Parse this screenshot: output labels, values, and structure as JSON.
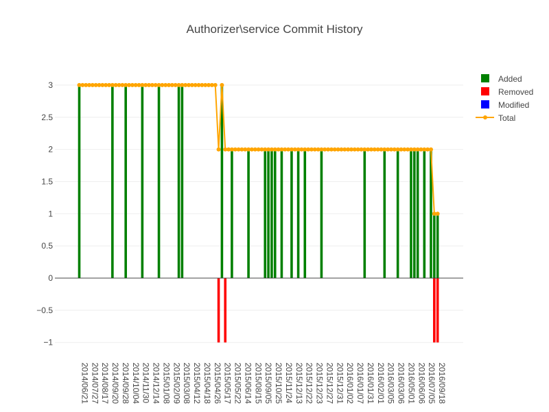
{
  "chart_data": {
    "type": "bar",
    "title": "Authorizer\\service Commit History",
    "xlabel": "",
    "ylabel": "",
    "ylim": [
      -1.1,
      3.3
    ],
    "y_ticks": [
      3,
      2.5,
      2,
      1.5,
      1,
      0.5,
      0,
      -0.5,
      -1
    ],
    "y_tick_labels": [
      "3",
      "2.5",
      "2",
      "1.5",
      "1",
      "0.5",
      "0",
      "−0.5",
      "−1"
    ],
    "grid": true,
    "legend_position": "top-right",
    "x_tick_labels": [
      "2014/06/21",
      "2014/07/27",
      "2014/08/17",
      "2014/09/20",
      "2014/09/28",
      "2014/10/04",
      "2014/11/30",
      "2014/12/14",
      "2015/01/08",
      "2015/02/09",
      "2015/03/08",
      "2015/04/12",
      "2015/04/18",
      "2015/04/26",
      "2015/05/17",
      "2015/05/22",
      "2015/06/14",
      "2015/08/15",
      "2015/09/05",
      "2015/10/25",
      "2015/11/24",
      "2015/12/13",
      "2015/12/22",
      "2015/12/23",
      "2015/12/27",
      "2015/12/31",
      "2016/01/02",
      "2016/01/07",
      "2016/01/31",
      "2016/02/01",
      "2016/03/05",
      "2016/03/06",
      "2016/05/01",
      "2016/06/06",
      "2016/07/05",
      "2016/09/18"
    ],
    "colors": {
      "added": "#008000",
      "removed": "#ff0000",
      "modified": "#0000ff",
      "total": "#ffa500"
    },
    "series": [
      {
        "name": "Added",
        "kind": "bar",
        "color": "#008000",
        "points": [
          [
            0,
            3
          ],
          [
            10,
            3
          ],
          [
            14,
            3
          ],
          [
            19,
            3
          ],
          [
            24,
            3
          ],
          [
            30,
            3
          ],
          [
            31,
            3
          ],
          [
            43,
            3
          ],
          [
            46,
            2
          ],
          [
            51,
            2
          ],
          [
            56,
            2
          ],
          [
            57,
            2
          ],
          [
            58,
            2
          ],
          [
            59,
            2
          ],
          [
            61,
            2
          ],
          [
            64,
            2
          ],
          [
            66,
            2
          ],
          [
            68,
            2
          ],
          [
            73,
            2
          ],
          [
            86,
            2
          ],
          [
            92,
            2
          ],
          [
            96,
            2
          ],
          [
            100,
            2
          ],
          [
            101,
            2
          ],
          [
            102,
            2
          ],
          [
            104,
            2
          ],
          [
            106,
            2
          ],
          [
            107,
            1
          ],
          [
            108,
            1
          ]
        ]
      },
      {
        "name": "Removed",
        "kind": "bar",
        "color": "#ff0000",
        "points": [
          [
            42,
            -1
          ],
          [
            44,
            -1
          ],
          [
            107,
            -1
          ],
          [
            108,
            -1
          ]
        ]
      },
      {
        "name": "Modified",
        "kind": "bar",
        "color": "#0000ff",
        "points": []
      },
      {
        "name": "Total",
        "kind": "line",
        "color": "#ffa500",
        "points": [
          [
            0,
            3
          ],
          [
            1,
            3
          ],
          [
            2,
            3
          ],
          [
            3,
            3
          ],
          [
            4,
            3
          ],
          [
            5,
            3
          ],
          [
            6,
            3
          ],
          [
            7,
            3
          ],
          [
            8,
            3
          ],
          [
            9,
            3
          ],
          [
            10,
            3
          ],
          [
            11,
            3
          ],
          [
            12,
            3
          ],
          [
            13,
            3
          ],
          [
            14,
            3
          ],
          [
            15,
            3
          ],
          [
            16,
            3
          ],
          [
            17,
            3
          ],
          [
            18,
            3
          ],
          [
            19,
            3
          ],
          [
            20,
            3
          ],
          [
            21,
            3
          ],
          [
            22,
            3
          ],
          [
            23,
            3
          ],
          [
            24,
            3
          ],
          [
            25,
            3
          ],
          [
            26,
            3
          ],
          [
            27,
            3
          ],
          [
            28,
            3
          ],
          [
            29,
            3
          ],
          [
            30,
            3
          ],
          [
            31,
            3
          ],
          [
            32,
            3
          ],
          [
            33,
            3
          ],
          [
            34,
            3
          ],
          [
            35,
            3
          ],
          [
            36,
            3
          ],
          [
            37,
            3
          ],
          [
            38,
            3
          ],
          [
            39,
            3
          ],
          [
            40,
            3
          ],
          [
            41,
            3
          ],
          [
            42,
            2
          ],
          [
            43,
            3
          ],
          [
            44,
            2
          ],
          [
            45,
            2
          ],
          [
            46,
            2
          ],
          [
            47,
            2
          ],
          [
            48,
            2
          ],
          [
            49,
            2
          ],
          [
            50,
            2
          ],
          [
            51,
            2
          ],
          [
            52,
            2
          ],
          [
            53,
            2
          ],
          [
            54,
            2
          ],
          [
            55,
            2
          ],
          [
            56,
            2
          ],
          [
            57,
            2
          ],
          [
            58,
            2
          ],
          [
            59,
            2
          ],
          [
            60,
            2
          ],
          [
            61,
            2
          ],
          [
            62,
            2
          ],
          [
            63,
            2
          ],
          [
            64,
            2
          ],
          [
            65,
            2
          ],
          [
            66,
            2
          ],
          [
            67,
            2
          ],
          [
            68,
            2
          ],
          [
            69,
            2
          ],
          [
            70,
            2
          ],
          [
            71,
            2
          ],
          [
            72,
            2
          ],
          [
            73,
            2
          ],
          [
            74,
            2
          ],
          [
            75,
            2
          ],
          [
            76,
            2
          ],
          [
            77,
            2
          ],
          [
            78,
            2
          ],
          [
            79,
            2
          ],
          [
            80,
            2
          ],
          [
            81,
            2
          ],
          [
            82,
            2
          ],
          [
            83,
            2
          ],
          [
            84,
            2
          ],
          [
            85,
            2
          ],
          [
            86,
            2
          ],
          [
            87,
            2
          ],
          [
            88,
            2
          ],
          [
            89,
            2
          ],
          [
            90,
            2
          ],
          [
            91,
            2
          ],
          [
            92,
            2
          ],
          [
            93,
            2
          ],
          [
            94,
            2
          ],
          [
            95,
            2
          ],
          [
            96,
            2
          ],
          [
            97,
            2
          ],
          [
            98,
            2
          ],
          [
            99,
            2
          ],
          [
            100,
            2
          ],
          [
            101,
            2
          ],
          [
            102,
            2
          ],
          [
            103,
            2
          ],
          [
            104,
            2
          ],
          [
            105,
            2
          ],
          [
            106,
            2
          ],
          [
            107,
            1
          ],
          [
            108,
            1
          ]
        ]
      }
    ]
  },
  "legend": {
    "added_label": "Added",
    "removed_label": "Removed",
    "modified_label": "Modified",
    "total_label": "Total"
  }
}
